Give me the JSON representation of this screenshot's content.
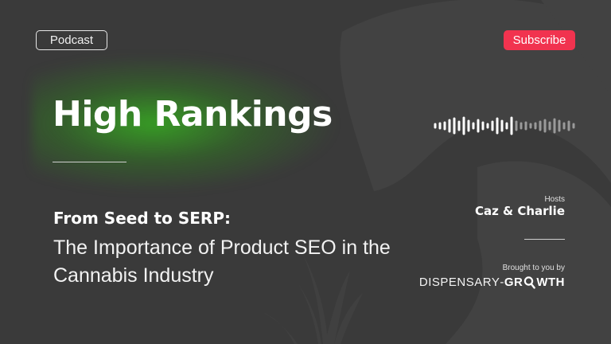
{
  "badges": {
    "podcast": "Podcast",
    "subscribe": "Subscribe"
  },
  "title": "High Rankings",
  "subtitle": {
    "strong": "From Seed to SERP:",
    "body": "The Importance of Product SEO in the Cannabis Industry"
  },
  "hosts": {
    "label": "Hosts",
    "names": "Caz & Charlie"
  },
  "sponsor": {
    "label": "Brought to you by",
    "brand_part1": "DISPENSARY",
    "brand_part2": "GR",
    "brand_part3": "WTH"
  },
  "icons": [
    "audio-waveform-icon",
    "magnifier-icon",
    "cannabis-leaf-icon"
  ],
  "colors": {
    "background": "#3a3a3a",
    "accent_subscribe": "#f1334f",
    "glow_green": "#37be1e",
    "text": "#ffffff"
  }
}
